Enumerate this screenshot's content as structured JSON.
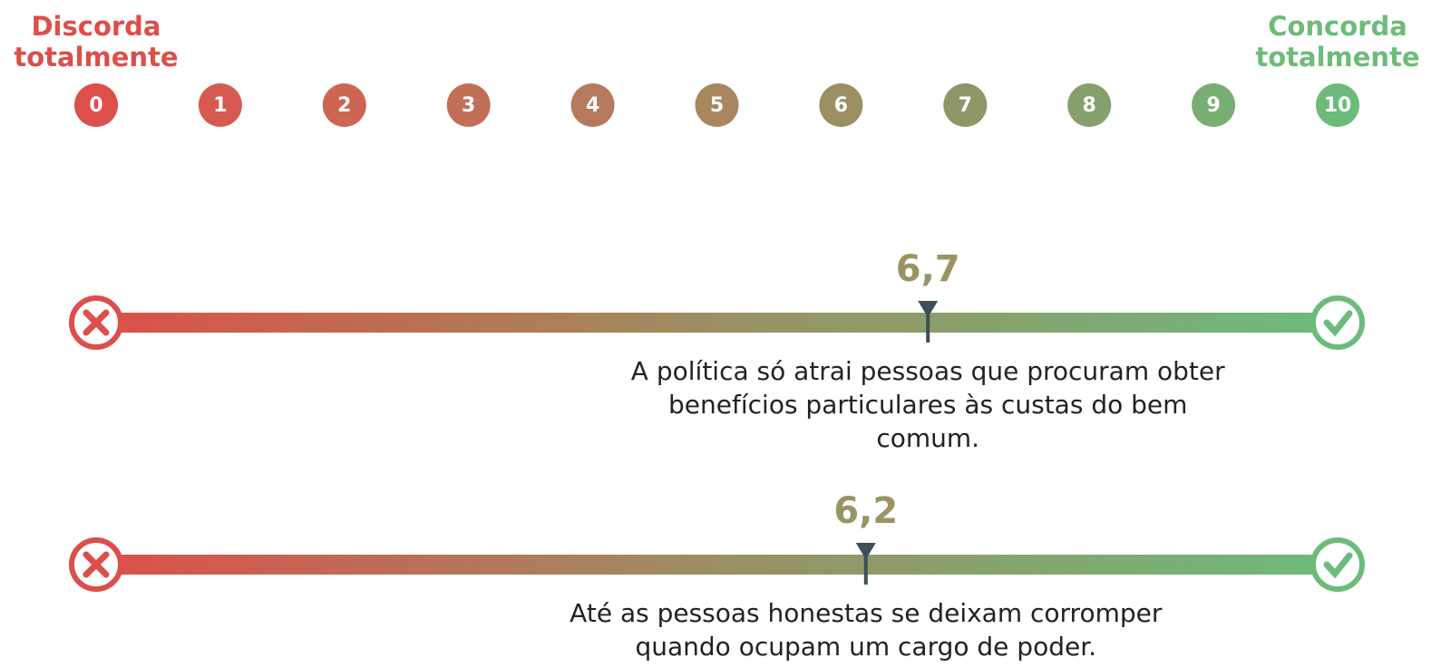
{
  "chart_data": {
    "type": "scale",
    "left_label": "Discorda totalmente",
    "right_label": "Concorda totalmente",
    "left_color": "#dc4f4a",
    "right_color": "#6dbb7a",
    "xlim": [
      0,
      10
    ],
    "xticks": [
      0,
      1,
      2,
      3,
      4,
      5,
      6,
      7,
      8,
      9,
      10
    ],
    "tick_colors": [
      "#dc4f4a",
      "#d65a50",
      "#cd6553",
      "#c26f58",
      "#b57a5d",
      "#a8865f",
      "#9b8f63",
      "#8f9667",
      "#85a06b",
      "#79ae72",
      "#6dbb7a"
    ],
    "categories": [
      "A política só atrai pessoas que procuram obter benefícios particulares às custas do bem comum.",
      "Até as pessoas honestas se deixam corromper quando ocupam um cargo de poder."
    ],
    "values": [
      6.7,
      6.2
    ],
    "value_labels": [
      "6,7",
      "6,2"
    ],
    "value_color": "#9a9464",
    "marker_color": "#3d4f57"
  }
}
